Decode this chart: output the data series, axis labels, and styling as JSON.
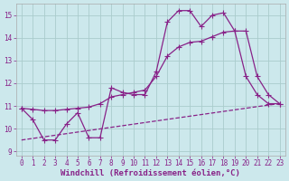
{
  "background_color": "#cce8ec",
  "grid_color": "#aacccc",
  "line_color": "#882288",
  "markersize": 3,
  "linewidth": 0.9,
  "xlabel": "Windchill (Refroidissement éolien,°C)",
  "xlabel_fontsize": 6.5,
  "tick_fontsize": 5.5,
  "xlim": [
    -0.5,
    23.5
  ],
  "ylim": [
    8.8,
    15.5
  ],
  "yticks": [
    9,
    10,
    11,
    12,
    13,
    14,
    15
  ],
  "xticks": [
    0,
    1,
    2,
    3,
    4,
    5,
    6,
    7,
    8,
    9,
    10,
    11,
    12,
    13,
    14,
    15,
    16,
    17,
    18,
    19,
    20,
    21,
    22,
    23
  ],
  "line1_x": [
    0,
    1,
    2,
    3,
    4,
    5,
    6,
    7,
    8,
    9,
    10,
    11,
    12,
    13,
    14,
    15,
    16,
    17,
    18,
    19,
    20,
    21,
    22,
    23
  ],
  "line1_y": [
    10.9,
    10.4,
    9.5,
    9.5,
    10.2,
    10.7,
    9.6,
    9.6,
    11.8,
    11.6,
    11.5,
    11.5,
    12.5,
    14.7,
    15.2,
    15.2,
    14.5,
    15.0,
    15.1,
    14.3,
    12.3,
    11.5,
    11.1,
    11.1
  ],
  "line2_x": [
    0,
    1,
    2,
    3,
    4,
    5,
    6,
    7,
    8,
    9,
    10,
    11,
    12,
    13,
    14,
    15,
    16,
    17,
    18,
    19,
    20,
    21,
    22,
    23
  ],
  "line2_y": [
    10.9,
    10.85,
    10.8,
    10.8,
    10.85,
    10.9,
    10.95,
    11.1,
    11.4,
    11.5,
    11.6,
    11.7,
    12.3,
    13.2,
    13.6,
    13.8,
    13.85,
    14.05,
    14.25,
    14.3,
    14.3,
    12.3,
    11.5,
    11.1
  ],
  "line3_x": [
    0,
    1,
    2,
    3,
    4,
    5,
    6,
    7,
    8,
    9,
    10,
    11,
    12,
    13,
    14,
    15,
    16,
    17,
    18,
    19,
    20,
    21,
    22,
    23
  ],
  "line3_y": [
    9.5,
    9.57,
    9.64,
    9.71,
    9.78,
    9.85,
    9.92,
    9.99,
    10.06,
    10.13,
    10.2,
    10.27,
    10.34,
    10.41,
    10.48,
    10.55,
    10.62,
    10.69,
    10.76,
    10.83,
    10.9,
    10.97,
    11.04,
    11.1
  ]
}
